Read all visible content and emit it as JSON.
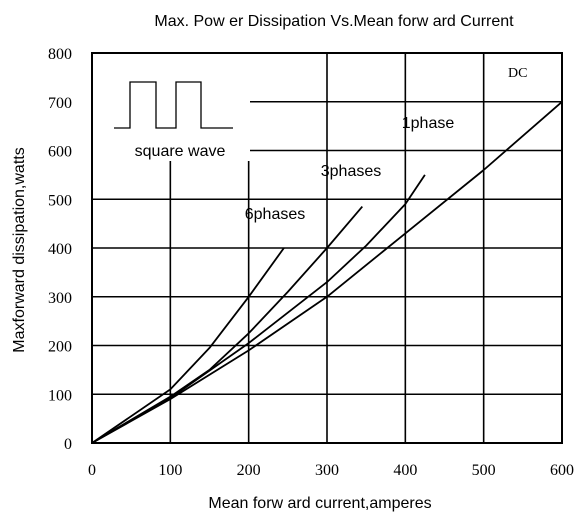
{
  "chart_data": {
    "type": "line",
    "title": "Max. Pow er Dissipation Vs.Mean forw ard Current",
    "xlabel": "Mean forw ard current,amperes",
    "ylabel": "Maxforward dissipation,watts",
    "xlim": [
      0,
      600
    ],
    "ylim": [
      0,
      800
    ],
    "x_ticks": [
      "0",
      "100",
      "200",
      "300",
      "400",
      "500",
      "600"
    ],
    "y_ticks": [
      "0",
      "100",
      "200",
      "300",
      "400",
      "500",
      "600",
      "700",
      "800"
    ],
    "grid": true,
    "series": [
      {
        "name": "DC",
        "x": [
          0,
          100,
          200,
          300,
          400,
          500,
          600
        ],
        "y": [
          0,
          90,
          190,
          300,
          430,
          560,
          700
        ]
      },
      {
        "name": "1phase",
        "x": [
          0,
          100,
          200,
          300,
          350,
          400,
          425
        ],
        "y": [
          0,
          92,
          205,
          330,
          405,
          490,
          550
        ]
      },
      {
        "name": "3phases",
        "x": [
          0,
          100,
          150,
          200,
          250,
          300,
          345
        ],
        "y": [
          0,
          95,
          150,
          225,
          310,
          400,
          485
        ]
      },
      {
        "name": "6phases",
        "x": [
          0,
          100,
          150,
          200,
          245
        ],
        "y": [
          0,
          110,
          195,
          300,
          400
        ]
      }
    ],
    "annotations": {
      "dc": "DC",
      "one_phase": "1phase",
      "three_phases": "3phases",
      "six_phases": "6phases",
      "square_wave": "square wave"
    }
  }
}
